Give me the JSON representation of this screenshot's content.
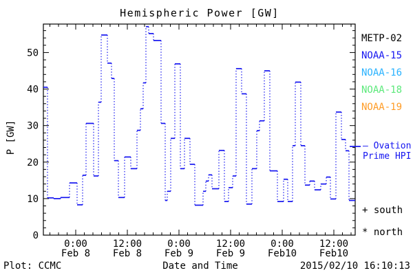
{
  "title": "Hemispheric Power [GW]",
  "legend": {
    "satellites": [
      {
        "label": "METP-02",
        "color": "#000000"
      },
      {
        "label": "NOAA-15",
        "color": "#1414f0"
      },
      {
        "label": "NOAA-16",
        "color": "#29b2ff"
      },
      {
        "label": "NOAA-18",
        "color": "#5ce97b"
      },
      {
        "label": "NOAA-19",
        "color": "#ff9c26"
      }
    ]
  },
  "annotations": {
    "ovation_line1": "– Ovation",
    "ovation_line2": "Prime HPI",
    "ovation_color": "#1414f0",
    "south_marker": "+ south",
    "north_marker": "* north"
  },
  "footer": {
    "plot_credit": "Plot: CCMC",
    "xaxis_title": "Date and Time",
    "timestamp": "2015/02/10 16:10:13"
  },
  "chart_data": {
    "type": "line",
    "subtype": "step-segments-with-dotted-connectors",
    "title": "Hemispheric Power [GW]",
    "xlabel": "Date and Time",
    "ylabel": "P [GW]",
    "ylim": [
      0,
      57.8
    ],
    "y_major_ticks": [
      0,
      10,
      20,
      30,
      40,
      50
    ],
    "y_minor_step": 2,
    "x_unit": "hours since 2015-02-08 00:00",
    "xlim_hours": [
      -7.52,
      64.96
    ],
    "x_minor_step_hours": 2,
    "x_major_ticks": [
      {
        "t": 0,
        "time": "0:00",
        "date": "Feb 8"
      },
      {
        "t": 12,
        "time": "12:00",
        "date": "Feb 8"
      },
      {
        "t": 24,
        "time": "0:00",
        "date": "Feb 9"
      },
      {
        "t": 36,
        "time": "12:00",
        "date": "Feb 9"
      },
      {
        "t": 48,
        "time": "0:00",
        "date": "Feb10"
      },
      {
        "t": 60,
        "time": "12:00",
        "date": "Feb10"
      }
    ],
    "series_color": "#1414f0",
    "grid": false,
    "legend_position": "right-outside",
    "segments_note": "each entry = [t_start_h, t_end_h, power_GW]; horizontal pass segments joined by dotted verticals",
    "segments": [
      [
        -7.52,
        -6.56,
        40.5
      ],
      [
        -6.56,
        -5.12,
        10.2
      ],
      [
        -5.12,
        -3.52,
        10.0
      ],
      [
        -3.52,
        -1.44,
        10.3
      ],
      [
        -1.44,
        0.32,
        14.3
      ],
      [
        0.32,
        1.6,
        8.3
      ],
      [
        1.6,
        2.4,
        16.4
      ],
      [
        2.4,
        4.16,
        30.6
      ],
      [
        4.16,
        5.28,
        16.2
      ],
      [
        5.28,
        5.92,
        36.4
      ],
      [
        5.92,
        7.36,
        54.8
      ],
      [
        7.36,
        8.32,
        47.1
      ],
      [
        8.32,
        8.96,
        42.9
      ],
      [
        8.96,
        9.92,
        20.4
      ],
      [
        9.92,
        11.36,
        10.3
      ],
      [
        11.36,
        12.8,
        21.4
      ],
      [
        12.8,
        14.24,
        18.2
      ],
      [
        14.24,
        15.04,
        28.7
      ],
      [
        15.04,
        15.68,
        34.6
      ],
      [
        15.68,
        16.32,
        41.7
      ],
      [
        16.32,
        16.96,
        57.1
      ],
      [
        16.96,
        18.08,
        55.2
      ],
      [
        18.08,
        19.84,
        53.3
      ],
      [
        19.84,
        20.8,
        30.6
      ],
      [
        20.8,
        21.28,
        9.5
      ],
      [
        21.28,
        22.08,
        12.0
      ],
      [
        22.08,
        23.04,
        26.5
      ],
      [
        23.04,
        24.32,
        46.9
      ],
      [
        24.32,
        25.28,
        18.2
      ],
      [
        25.28,
        26.56,
        26.5
      ],
      [
        26.56,
        27.68,
        19.4
      ],
      [
        27.68,
        29.6,
        8.2
      ],
      [
        29.6,
        30.24,
        12.0
      ],
      [
        30.24,
        30.88,
        14.8
      ],
      [
        30.88,
        31.68,
        16.5
      ],
      [
        31.68,
        33.28,
        12.7
      ],
      [
        33.28,
        34.56,
        23.2
      ],
      [
        34.56,
        35.52,
        9.2
      ],
      [
        35.52,
        36.48,
        13.0
      ],
      [
        36.48,
        37.28,
        16.2
      ],
      [
        37.28,
        38.56,
        45.6
      ],
      [
        38.56,
        39.68,
        38.7
      ],
      [
        39.68,
        40.96,
        8.5
      ],
      [
        40.96,
        42.08,
        18.2
      ],
      [
        42.08,
        42.72,
        28.6
      ],
      [
        42.72,
        43.84,
        31.3
      ],
      [
        43.84,
        45.12,
        45.0
      ],
      [
        45.12,
        46.88,
        17.6
      ],
      [
        46.88,
        48.32,
        9.2
      ],
      [
        48.32,
        49.28,
        15.3
      ],
      [
        49.28,
        50.4,
        9.2
      ],
      [
        50.4,
        51.04,
        24.5
      ],
      [
        51.04,
        52.32,
        41.9
      ],
      [
        52.32,
        53.28,
        24.5
      ],
      [
        53.28,
        54.4,
        13.7
      ],
      [
        54.4,
        55.52,
        14.8
      ],
      [
        55.52,
        56.96,
        12.4
      ],
      [
        56.96,
        58.24,
        14.0
      ],
      [
        58.24,
        59.2,
        15.9
      ],
      [
        59.2,
        60.48,
        9.9
      ],
      [
        60.48,
        61.76,
        33.7
      ],
      [
        61.76,
        62.72,
        26.2
      ],
      [
        62.72,
        63.52,
        23.1
      ],
      [
        63.52,
        64.96,
        9.5
      ]
    ]
  }
}
